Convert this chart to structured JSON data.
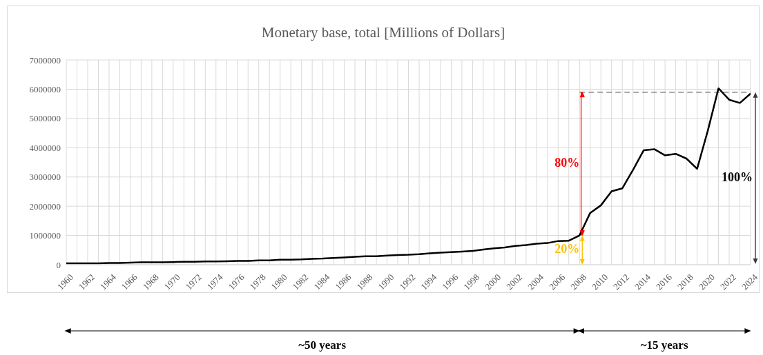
{
  "chart_data": {
    "type": "line",
    "title": "Monetary  base, total [Millions of Dollars]",
    "x": [
      1960,
      1961,
      1962,
      1963,
      1964,
      1965,
      1966,
      1967,
      1968,
      1969,
      1970,
      1971,
      1972,
      1973,
      1974,
      1975,
      1976,
      1977,
      1978,
      1979,
      1980,
      1981,
      1982,
      1983,
      1984,
      1985,
      1986,
      1987,
      1988,
      1989,
      1990,
      1991,
      1992,
      1993,
      1994,
      1995,
      1996,
      1997,
      1998,
      1999,
      2000,
      2001,
      2002,
      2003,
      2004,
      2005,
      2006,
      2007,
      2008,
      2009,
      2010,
      2011,
      2012,
      2013,
      2014,
      2015,
      2016,
      2017,
      2018,
      2019,
      2020,
      2021,
      2022,
      2023,
      2024
    ],
    "series": [
      {
        "color": "#000000",
        "values": [
          50000,
          50000,
          50000,
          50000,
          60000,
          60000,
          70000,
          80000,
          80000,
          80000,
          90000,
          100000,
          100000,
          110000,
          110000,
          120000,
          130000,
          130000,
          150000,
          150000,
          170000,
          170000,
          180000,
          200000,
          210000,
          230000,
          250000,
          270000,
          290000,
          290000,
          310000,
          330000,
          340000,
          360000,
          390000,
          410000,
          430000,
          450000,
          470000,
          520000,
          560000,
          590000,
          640000,
          670000,
          720000,
          740000,
          810000,
          820000,
          1000000,
          1770000,
          2030000,
          2510000,
          2610000,
          3240000,
          3910000,
          3950000,
          3740000,
          3790000,
          3630000,
          3280000,
          4580000,
          6030000,
          5640000,
          5530000,
          5850000
        ]
      }
    ],
    "xlim": [
      1960,
      2024
    ],
    "xticks": [
      1960,
      {
        "value": 1961,
        "label": null
      },
      1962,
      {
        "value": 1963,
        "label": null
      },
      1964,
      {
        "value": 1965,
        "label": null
      },
      1966,
      {
        "value": 1967,
        "label": null
      },
      1968,
      {
        "value": 1969,
        "label": null
      },
      1970,
      {
        "value": 1971,
        "label": null
      },
      1972,
      {
        "value": 1973,
        "label": null
      },
      1974,
      {
        "value": 1975,
        "label": null
      },
      1976,
      {
        "value": 1977,
        "label": null
      },
      1978,
      {
        "value": 1979,
        "label": null
      },
      1980,
      {
        "value": 1981,
        "label": null
      },
      1982,
      {
        "value": 1983,
        "label": null
      },
      1984,
      {
        "value": 1985,
        "label": null
      },
      1986,
      {
        "value": 1987,
        "label": null
      },
      1988,
      {
        "value": 1989,
        "label": null
      },
      1990,
      {
        "value": 1991,
        "label": null
      },
      1992,
      {
        "value": 1993,
        "label": null
      },
      1994,
      {
        "value": 1995,
        "label": null
      },
      1996,
      {
        "value": 1997,
        "label": null
      },
      1998,
      {
        "value": 1999,
        "label": null
      },
      2000,
      {
        "value": 2001,
        "label": null
      },
      2002,
      {
        "value": 2003,
        "label": null
      },
      2004,
      {
        "value": 2005,
        "label": null
      },
      2006,
      {
        "value": 2007,
        "label": null
      },
      2008,
      {
        "value": 2009,
        "label": null
      },
      2010,
      {
        "value": 2011,
        "label": null
      },
      2012,
      {
        "value": 2013,
        "label": null
      },
      2014,
      {
        "value": 2015,
        "label": null
      },
      2016,
      {
        "value": 2017,
        "label": null
      },
      2018,
      {
        "value": 2019,
        "label": null
      },
      2020,
      {
        "value": 2021,
        "label": null
      },
      2022,
      {
        "value": 2023,
        "label": null
      },
      2024
    ],
    "ylim": [
      0,
      7000000
    ],
    "yticks": [
      0,
      1000000,
      2000000,
      3000000,
      4000000,
      5000000,
      6000000,
      7000000
    ],
    "grid": true,
    "marker": "none",
    "line_style": "solid",
    "ref_lines": [
      {
        "axis": "y",
        "value": 5900000,
        "color": "#7f7f7f",
        "line_style": "dashed"
      },
      {
        "axis": "x",
        "value": 2008,
        "color": "#ff0000",
        "line_style": "solid"
      }
    ],
    "annotations": [
      "80%",
      "20%",
      "100%",
      "~50 years",
      "~15 years"
    ]
  }
}
